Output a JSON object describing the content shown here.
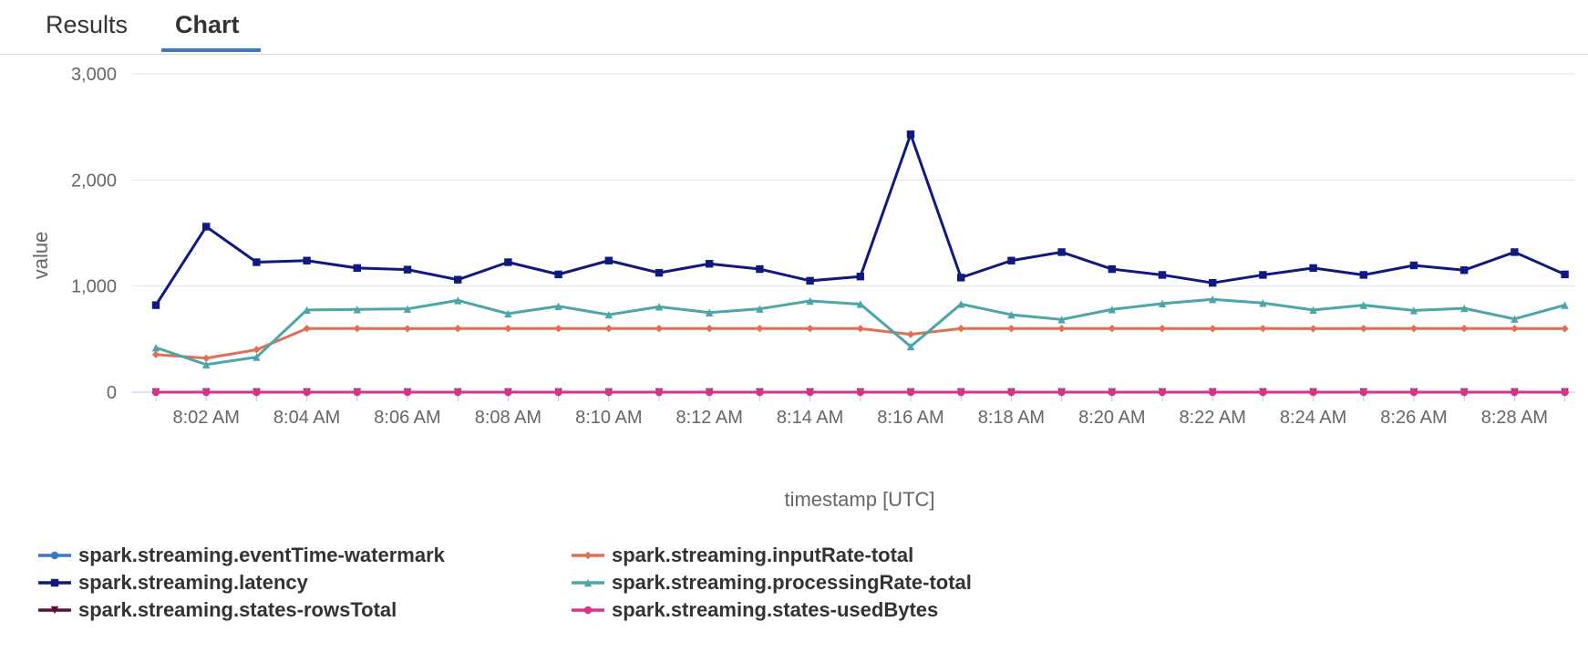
{
  "tabs": [
    {
      "label": "Results",
      "active": false
    },
    {
      "label": "Chart",
      "active": true
    }
  ],
  "chart_data": {
    "type": "line",
    "title": "",
    "xlabel": "timestamp [UTC]",
    "ylabel": "value",
    "ylim": [
      0,
      3000
    ],
    "yticks": [
      0,
      1000,
      2000,
      3000
    ],
    "ytick_labels": [
      "0",
      "1,000",
      "2,000",
      "3,000"
    ],
    "x": [
      "8:01 AM",
      "8:02 AM",
      "8:03 AM",
      "8:04 AM",
      "8:05 AM",
      "8:06 AM",
      "8:07 AM",
      "8:08 AM",
      "8:09 AM",
      "8:10 AM",
      "8:11 AM",
      "8:12 AM",
      "8:13 AM",
      "8:14 AM",
      "8:15 AM",
      "8:16 AM",
      "8:17 AM",
      "8:18 AM",
      "8:19 AM",
      "8:20 AM",
      "8:21 AM",
      "8:22 AM",
      "8:23 AM",
      "8:24 AM",
      "8:25 AM",
      "8:26 AM",
      "8:27 AM",
      "8:28 AM",
      "8:29 AM"
    ],
    "xtick_labels": [
      "8:02 AM",
      "8:04 AM",
      "8:06 AM",
      "8:08 AM",
      "8:10 AM",
      "8:12 AM",
      "8:14 AM",
      "8:16 AM",
      "8:18 AM",
      "8:20 AM",
      "8:22 AM",
      "8:24 AM",
      "8:26 AM",
      "8:28 AM"
    ],
    "grid": true,
    "legend_position": "bottom",
    "series": [
      {
        "name": "spark.streaming.eventTime-watermark",
        "color": "#3b78c9",
        "marker": "circle",
        "values": [
          0,
          0,
          0,
          0,
          0,
          0,
          0,
          0,
          0,
          0,
          0,
          0,
          0,
          0,
          0,
          0,
          0,
          0,
          0,
          0,
          0,
          0,
          0,
          0,
          0,
          0,
          0,
          0,
          0
        ]
      },
      {
        "name": "spark.streaming.latency",
        "color": "#0e1a80",
        "marker": "square",
        "values": [
          820,
          1560,
          1225,
          1240,
          1170,
          1155,
          1060,
          1225,
          1110,
          1240,
          1125,
          1210,
          1160,
          1050,
          1090,
          2430,
          1080,
          1240,
          1320,
          1160,
          1105,
          1030,
          1105,
          1170,
          1105,
          1195,
          1150,
          1320,
          1110
        ]
      },
      {
        "name": "spark.streaming.states-rowsTotal",
        "color": "#5b0f3a",
        "marker": "triangle-down",
        "values": [
          0,
          0,
          0,
          0,
          0,
          0,
          0,
          0,
          0,
          0,
          0,
          0,
          0,
          0,
          0,
          0,
          0,
          0,
          0,
          0,
          0,
          0,
          0,
          0,
          0,
          0,
          0,
          0,
          0
        ]
      },
      {
        "name": "spark.streaming.inputRate-total",
        "color": "#e07055",
        "marker": "diamond",
        "values": [
          355,
          320,
          400,
          600,
          600,
          598,
          600,
          600,
          600,
          600,
          600,
          600,
          600,
          600,
          600,
          545,
          600,
          600,
          600,
          600,
          600,
          598,
          600,
          598,
          600,
          600,
          600,
          600,
          598
        ]
      },
      {
        "name": "spark.streaming.processingRate-total",
        "color": "#4aa6a8",
        "marker": "triangle",
        "values": [
          420,
          260,
          330,
          775,
          780,
          785,
          865,
          740,
          810,
          730,
          805,
          750,
          785,
          860,
          830,
          430,
          830,
          730,
          685,
          780,
          835,
          875,
          840,
          775,
          820,
          770,
          790,
          690,
          820
        ]
      },
      {
        "name": "spark.streaming.states-usedBytes",
        "color": "#d6338a",
        "marker": "circle",
        "values": [
          0,
          0,
          0,
          0,
          0,
          0,
          0,
          0,
          0,
          0,
          0,
          0,
          0,
          0,
          0,
          0,
          0,
          0,
          0,
          0,
          0,
          0,
          0,
          0,
          0,
          0,
          0,
          0,
          0
        ]
      }
    ]
  }
}
